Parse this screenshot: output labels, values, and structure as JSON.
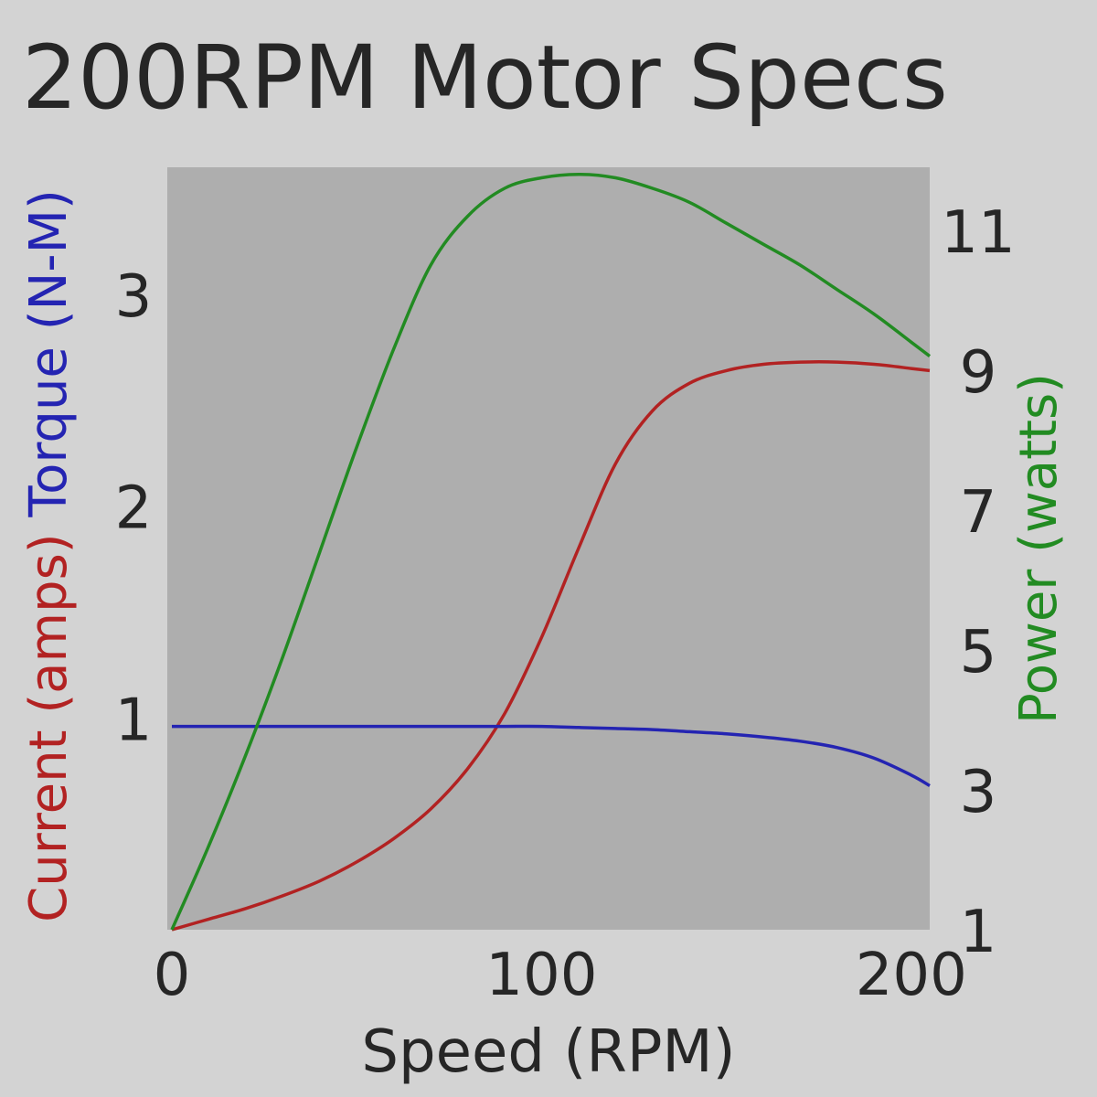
{
  "chart_data": {
    "type": "line",
    "title": "200RPM Motor Specs",
    "xlabel": "Speed (RPM)",
    "xlim": [
      0,
      205
    ],
    "x_ticks": [
      "0",
      "100",
      "200"
    ],
    "left_axis": {
      "label_parts": [
        {
          "text": "Current (amps)",
          "color": "#b22222"
        },
        {
          "text": "Torque (N-M)",
          "color": "#2424b2"
        }
      ],
      "ylim": [
        0.0,
        3.6
      ],
      "ticks": [
        "1",
        "2",
        "3"
      ]
    },
    "right_axis": {
      "label": "Power (watts)",
      "color": "#228b22",
      "ylim": [
        1.0,
        11.9
      ],
      "ticks": [
        "1",
        "3",
        "5",
        "7",
        "9",
        "11"
      ]
    },
    "x": [
      0,
      10,
      20,
      30,
      40,
      50,
      60,
      70,
      80,
      90,
      100,
      110,
      120,
      130,
      140,
      150,
      160,
      170,
      180,
      190,
      200,
      205
    ],
    "series": [
      {
        "name": "Current (amps)",
        "axis": "left",
        "color": "#b22222",
        "values": [
          0.0,
          0.05,
          0.1,
          0.16,
          0.23,
          0.32,
          0.43,
          0.57,
          0.76,
          1.02,
          1.38,
          1.8,
          2.2,
          2.45,
          2.58,
          2.64,
          2.67,
          2.68,
          2.68,
          2.67,
          2.65,
          2.64
        ]
      },
      {
        "name": "Torque (N-M)",
        "axis": "left",
        "color": "#2424b2",
        "values": [
          0.96,
          0.96,
          0.96,
          0.96,
          0.96,
          0.96,
          0.96,
          0.96,
          0.96,
          0.96,
          0.96,
          0.955,
          0.95,
          0.945,
          0.935,
          0.925,
          0.91,
          0.89,
          0.86,
          0.81,
          0.73,
          0.68
        ]
      },
      {
        "name": "Power (watts)",
        "axis": "right",
        "color": "#228b22",
        "values": [
          1.0,
          2.2,
          3.5,
          4.9,
          6.4,
          7.9,
          9.3,
          10.5,
          11.2,
          11.6,
          11.75,
          11.8,
          11.75,
          11.6,
          11.4,
          11.1,
          10.8,
          10.5,
          10.15,
          9.8,
          9.4,
          9.2
        ]
      }
    ]
  }
}
